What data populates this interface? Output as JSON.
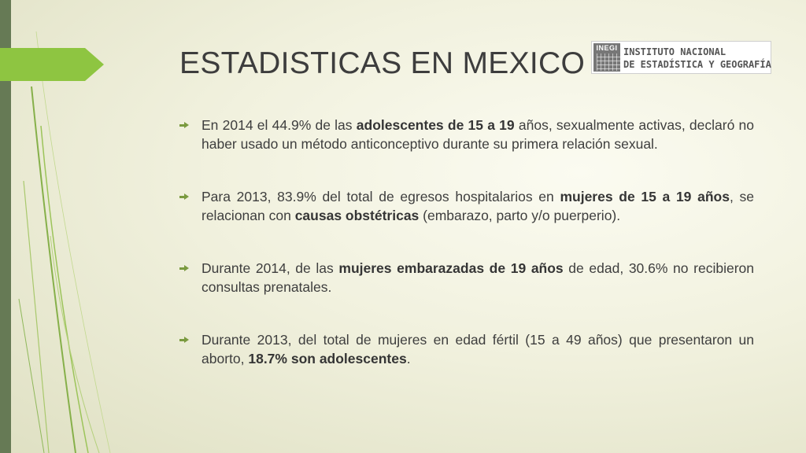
{
  "slide": {
    "title": "ESTADISTICAS EN MEXICO",
    "colors": {
      "accent": "#8ec541",
      "side_bar": "#667a55",
      "text": "#3e3e3e"
    }
  },
  "logo": {
    "mark": "INEGI",
    "line1": "INSTITUTO NACIONAL",
    "line2": "DE ESTADÍSTICA Y GEOGRAFÍA"
  },
  "bullets": [
    {
      "icon": "arrow-right-icon",
      "parts": [
        {
          "text": "En 2014 el 44.9% de las ",
          "bold": false
        },
        {
          "text": "adolescentes de 15 a 19",
          "bold": true
        },
        {
          "text": " años, sexualmente activas, declaró no haber usado un método anticonceptivo durante su primera relación sexual.",
          "bold": false
        }
      ]
    },
    {
      "icon": "arrow-right-icon",
      "parts": [
        {
          "text": "Para 2013, 83.9% del total de egresos hospitalarios en ",
          "bold": false
        },
        {
          "text": "mujeres de 15 a 19 años",
          "bold": true
        },
        {
          "text": ", se relacionan con ",
          "bold": false
        },
        {
          "text": "causas obstétricas",
          "bold": true
        },
        {
          "text": " (embarazo, parto y/o puerperio).",
          "bold": false
        }
      ]
    },
    {
      "icon": "arrow-right-icon",
      "parts": [
        {
          "text": "Durante 2014, de las ",
          "bold": false
        },
        {
          "text": "mujeres embarazadas de 19 años",
          "bold": true
        },
        {
          "text": " de edad, 30.6% no recibieron consultas prenatales.",
          "bold": false
        }
      ]
    },
    {
      "icon": "arrow-right-icon",
      "parts": [
        {
          "text": "Durante 2013, del total de mujeres en edad fértil (15 a 49 años) que presentaron un aborto, ",
          "bold": false
        },
        {
          "text": "18.7% son adolescentes",
          "bold": true
        },
        {
          "text": ".",
          "bold": false
        }
      ]
    }
  ]
}
